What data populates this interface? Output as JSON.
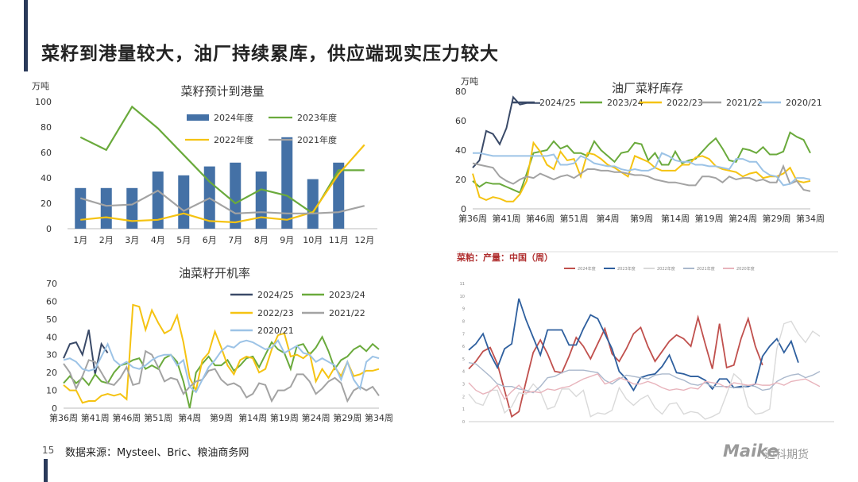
{
  "page": {
    "title": "菜籽到港量较大，油厂持续累库，供应端现实压力较大",
    "page_number": "15",
    "source": "数据来源：Mysteel、Bric、粮油商务网",
    "logo": "Maike",
    "logo_cn": "迈科期货"
  },
  "colors": {
    "c2425": "#3a4a68",
    "c2324": "#6aaa3c",
    "c2223": "#f5c312",
    "c2122": "#a3a3a3",
    "c2021": "#9cc3e6",
    "bar2024": "#4471a6"
  },
  "chart_data": [
    {
      "id": "arrivals",
      "type": "bar",
      "title": "菜籽预计到港量",
      "unit": "万吨",
      "categories": [
        "1月",
        "2月",
        "3月",
        "4月",
        "5月",
        "6月",
        "7月",
        "8月",
        "9月",
        "10月",
        "11月",
        "12月"
      ],
      "ylim": [
        0,
        100
      ],
      "yticks": [
        0,
        20,
        40,
        60,
        80,
        100
      ],
      "series": [
        {
          "name": "2024年度",
          "kind": "bar",
          "values": [
            32,
            32,
            32,
            45,
            42,
            49,
            52,
            45,
            72,
            39,
            52,
            null
          ]
        },
        {
          "name": "2023年度",
          "kind": "line",
          "values": [
            72,
            62,
            96,
            79,
            58,
            37,
            20,
            31,
            26,
            12,
            46,
            46
          ]
        },
        {
          "name": "2022年度",
          "kind": "line",
          "values": [
            7,
            9,
            6,
            7,
            12,
            6,
            5,
            9,
            7,
            13,
            43,
            66
          ]
        },
        {
          "name": "2021年度",
          "kind": "line",
          "values": [
            24,
            18,
            19,
            30,
            14,
            24,
            12,
            13,
            12,
            12,
            13,
            18
          ]
        }
      ],
      "legend": "inside-top-right"
    },
    {
      "id": "inventory",
      "type": "line",
      "title": "油厂菜籽库存",
      "unit": "万吨",
      "xticks": [
        "第36周",
        "第41周",
        "第46周",
        "第51周",
        "第4周",
        "第9周",
        "第14周",
        "第19周",
        "第24周",
        "第29周",
        "第34周"
      ],
      "ylim": [
        0,
        80
      ],
      "yticks": [
        0,
        20,
        40,
        60,
        80
      ],
      "npoints": 51,
      "series": [
        {
          "name": "2024/25",
          "values": [
            28,
            33,
            53,
            51,
            44,
            55,
            76,
            71,
            72,
            72,
            72
          ]
        },
        {
          "name": "2023/24",
          "values": [
            19,
            15,
            18,
            17,
            17,
            15,
            13,
            11,
            24,
            38,
            39,
            40,
            46,
            41,
            43,
            38,
            38,
            36,
            46,
            40,
            36,
            32,
            38,
            39,
            45,
            44,
            33,
            38,
            30,
            30,
            39,
            31,
            33,
            34,
            39,
            44,
            48,
            41,
            33,
            32,
            41,
            40,
            38,
            42,
            37,
            37,
            39,
            52,
            49,
            47,
            38
          ]
        },
        {
          "name": "2022/23",
          "values": [
            24,
            8,
            6,
            8,
            7,
            5,
            5,
            10,
            19,
            45,
            39,
            30,
            27,
            39,
            33,
            34,
            22,
            38,
            37,
            34,
            30,
            28,
            25,
            22,
            36,
            34,
            32,
            28,
            26,
            26,
            26,
            30,
            30,
            35,
            36,
            34,
            29,
            27,
            26,
            25,
            22,
            24,
            25,
            21,
            22,
            22,
            24,
            28,
            19,
            18,
            19
          ]
        },
        {
          "name": "2021/22",
          "values": [
            31,
            30,
            29,
            28,
            22,
            19,
            17,
            20,
            22,
            21,
            24,
            22,
            20,
            22,
            23,
            21,
            24,
            27,
            27,
            26,
            26,
            25,
            25,
            24,
            23,
            23,
            22,
            20,
            19,
            18,
            18,
            17,
            16,
            16,
            22,
            22,
            21,
            18,
            22,
            20,
            21,
            21,
            19,
            20,
            18,
            18,
            29,
            17,
            19,
            13,
            12
          ]
        },
        {
          "name": "2020/21",
          "values": [
            38,
            38,
            37,
            36,
            36,
            36,
            36,
            36,
            36,
            36,
            36,
            36,
            37,
            30,
            30,
            31,
            36,
            34,
            31,
            30,
            29,
            29,
            27,
            26,
            27,
            26,
            26,
            28,
            38,
            36,
            33,
            32,
            32,
            30,
            30,
            29,
            29,
            28,
            27,
            34,
            34,
            32,
            32,
            26,
            23,
            22,
            16,
            17,
            21,
            21,
            20
          ]
        }
      ],
      "legend": "top"
    },
    {
      "id": "operating_rate",
      "type": "line",
      "title": "油菜籽开机率",
      "xticks": [
        "第36周",
        "第41周",
        "第46周",
        "第51周",
        "第4周",
        "第9周",
        "第14周",
        "第19周",
        "第24周",
        "第29周",
        "第34周"
      ],
      "ylim": [
        0,
        70
      ],
      "yticks": [
        0,
        10,
        20,
        30,
        40,
        50,
        60,
        70
      ],
      "npoints": 51,
      "series": [
        {
          "name": "2024/25",
          "values": [
            28,
            36,
            37,
            30,
            44,
            19,
            36,
            31
          ]
        },
        {
          "name": "2023/24",
          "values": [
            14,
            18,
            14,
            17,
            13,
            19,
            15,
            14,
            20,
            24,
            25,
            27,
            28,
            22,
            24,
            22,
            28,
            30,
            26,
            15,
            0,
            20,
            25,
            29,
            24,
            24,
            27,
            21,
            24,
            28,
            29,
            23,
            30,
            37,
            33,
            31,
            22,
            35,
            36,
            30,
            34,
            40,
            32,
            22,
            27,
            29,
            33,
            35,
            32,
            36,
            33
          ]
        },
        {
          "name": "2022/23",
          "values": [
            13,
            10,
            10,
            3,
            4,
            4,
            7,
            8,
            7,
            8,
            5,
            58,
            57,
            44,
            55,
            48,
            42,
            44,
            52,
            37,
            17,
            10,
            27,
            31,
            43,
            34,
            24,
            19,
            27,
            29,
            28,
            20,
            22,
            33,
            41,
            42,
            29,
            30,
            28,
            31,
            15,
            22,
            17,
            23,
            18,
            26,
            18,
            19,
            21,
            21,
            22
          ]
        },
        {
          "name": "2021/22",
          "values": [
            25,
            20,
            11,
            18,
            27,
            26,
            20,
            14,
            13,
            17,
            23,
            13,
            14,
            32,
            30,
            23,
            15,
            17,
            16,
            8,
            12,
            15,
            16,
            21,
            22,
            16,
            13,
            14,
            12,
            6,
            8,
            14,
            13,
            4,
            10,
            10,
            12,
            19,
            19,
            15,
            8,
            11,
            15,
            17,
            14,
            4,
            10,
            12,
            10,
            12,
            7
          ]
        },
        {
          "name": "2020/21",
          "values": [
            27,
            28,
            26,
            22,
            21,
            22,
            29,
            36,
            27,
            24,
            26,
            23,
            22,
            24,
            27,
            29,
            30,
            30,
            24,
            27,
            12,
            9,
            16,
            23,
            27,
            32,
            35,
            34,
            37,
            38,
            37,
            35,
            33,
            34,
            38,
            31,
            33,
            35,
            31,
            30,
            26,
            28,
            26,
            24,
            16,
            26,
            16,
            11,
            26,
            29,
            28
          ]
        }
      ],
      "legend": "inside-top-right"
    },
    {
      "id": "production",
      "type": "line",
      "title": "菜粕：产量：中国（周）",
      "ylim": [
        0,
        11
      ],
      "yticks": [
        0,
        1,
        2,
        3,
        4,
        5,
        6,
        7,
        8,
        9,
        10,
        11
      ],
      "npoints": 52,
      "series": [
        {
          "name": "2024年度",
          "values": [
            4.2,
            4.8,
            5.6,
            5.9,
            4.6,
            2.5,
            0.4,
            0.8,
            3.2,
            5.5,
            6.5,
            5.4,
            4.0,
            3.9,
            5.2,
            6.7,
            6.0,
            5.0,
            6.2,
            7.4,
            5.4,
            4.8,
            5.8,
            7.0,
            7.5,
            6.0,
            4.8,
            5.6,
            6.4,
            6.9,
            6.6,
            6.0,
            8.3,
            6.2,
            4.2,
            7.8,
            4.3,
            4.5,
            6.6,
            8.2,
            6.0,
            4.5
          ]
        },
        {
          "name": "2023年度",
          "values": [
            5.7,
            6.2,
            7.0,
            5.4,
            4.3,
            5.8,
            6.2,
            9.8,
            8.1,
            6.7,
            5.3,
            7.3,
            7.3,
            7.3,
            6.1,
            6.1,
            7.4,
            8.5,
            8.2,
            7.0,
            5.8,
            4.0,
            3.4,
            2.5,
            3.5,
            3.7,
            3.8,
            4.4,
            5.3,
            3.9,
            3.8,
            3.6,
            3.6,
            3.3,
            2.6,
            3.4,
            3.4,
            2.7,
            2.8,
            2.8,
            3.0,
            5.2,
            6.0,
            6.6,
            5.5,
            6.4,
            4.7
          ]
        },
        {
          "name": "2022年度",
          "values": [
            2.2,
            1.5,
            1.3,
            2.5,
            2.5,
            0.7,
            1.2,
            2.3,
            2.2,
            3.0,
            2.4,
            1.0,
            1.2,
            2.6,
            2.6,
            2.0,
            2.5,
            0.4,
            0.7,
            0.6,
            0.9,
            2.7,
            1.8,
            1.3,
            1.8,
            2.1,
            1.1,
            0.6,
            1.4,
            1.5,
            0.6,
            0.8,
            0.7,
            0.2,
            0.4,
            0.7,
            2.2,
            3.8,
            3.3,
            1.2,
            0.6,
            0.7,
            1.0,
            5.8,
            7.8,
            8.0,
            7.0,
            6.3,
            7.2,
            6.8
          ]
        },
        {
          "name": "2021年度",
          "values": [
            4.7,
            4.6,
            4.1,
            3.6,
            3.0,
            2.8,
            2.8,
            2.6,
            2.5,
            2.3,
            2.8,
            3.5,
            3.6,
            3.9,
            4.1,
            4.1,
            4.1,
            4.0,
            3.9,
            3.3,
            3.0,
            3.4,
            3.7,
            3.6,
            3.5,
            3.4,
            3.7,
            3.8,
            3.8,
            3.5,
            3.3,
            3.0,
            2.9,
            3.1,
            2.8,
            2.8,
            2.8,
            2.7,
            2.7,
            2.9,
            2.8,
            2.5,
            2.6,
            3.2,
            3.5,
            3.7,
            3.8,
            3.5,
            3.7,
            4.0
          ]
        },
        {
          "name": "2020年度",
          "values": [
            3.1,
            2.5,
            2.2,
            2.4,
            2.9,
            1.8,
            2.4,
            2.9,
            2.3,
            2.4,
            2.3,
            2.6,
            2.5,
            2.7,
            2.8,
            3.1,
            3.4,
            3.6,
            3.8,
            3.0,
            3.2,
            3.5,
            3.3,
            3.0,
            3.0,
            3.2,
            3.0,
            2.7,
            2.5,
            2.6,
            2.5,
            2.7,
            2.6,
            3.2,
            3.1,
            3.0,
            2.7,
            3.1,
            3.0,
            2.9,
            3.0,
            2.9,
            2.9,
            3.1,
            2.9,
            3.2,
            3.3,
            3.4,
            3.1,
            2.8
          ]
        }
      ],
      "legend": "top"
    }
  ]
}
